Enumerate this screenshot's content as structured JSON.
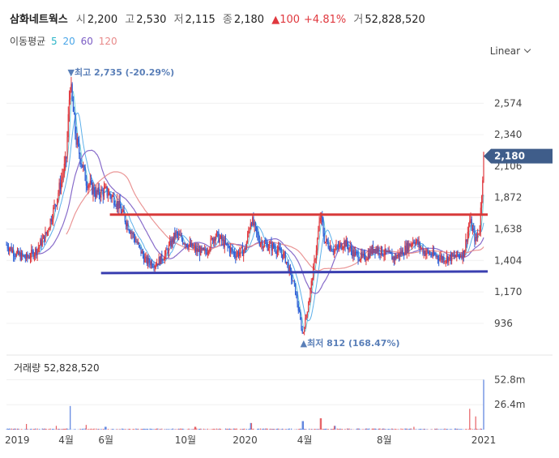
{
  "header": {
    "stock_name": "삼화네트웍스",
    "open_label": "시",
    "open": "2,200",
    "high_label": "고",
    "high": "2,530",
    "low_label": "저",
    "low": "2,115",
    "close_label": "종",
    "close": "2,180",
    "change": "▲100",
    "change_pct": "+4.81%",
    "volume_label": "거",
    "volume": "52,828,520"
  },
  "ma_legend": {
    "label": "이동평균",
    "items": [
      {
        "period": "5",
        "color": "#2bb5c8"
      },
      {
        "period": "20",
        "color": "#4aa6e8"
      },
      {
        "period": "60",
        "color": "#7b5cc4"
      },
      {
        "period": "120",
        "color": "#e88a8a"
      }
    ]
  },
  "scale_toggle": "Linear",
  "volume_header": {
    "label": "거래량",
    "value": "52,828,520"
  },
  "colors": {
    "up": "#e0383e",
    "down": "#2d5fd6",
    "resistance": "#d83a3a",
    "support": "#3a3fb0",
    "price_tag": "#3f5d8a"
  },
  "chart_data": {
    "type": "candlestick",
    "y_ticks": [
      "2,574",
      "2,340",
      "2,106",
      "1,872",
      "1,638",
      "1,404",
      "1,170",
      "936"
    ],
    "y_tick_values": [
      2574,
      2340,
      2106,
      1872,
      1638,
      1404,
      1170,
      936
    ],
    "ylim": [
      736,
      2890
    ],
    "x_ticks": [
      "2019",
      "4월",
      "6월",
      "10월",
      "2020",
      "4월",
      "8월",
      "2021"
    ],
    "x_tick_months": [
      0,
      3,
      5,
      9,
      12,
      15,
      19,
      24
    ],
    "x_range_months": [
      0,
      24
    ],
    "current_price": "2,180",
    "current_price_value": 2180,
    "max_annotation": {
      "text": "▼최고 2,735 (-20.29%)",
      "value": 2735,
      "month": 3.2
    },
    "min_annotation": {
      "text": "▲최저 812 (168.47%)",
      "value": 812,
      "month": 14.9
    },
    "resistance_line": {
      "value": 1745,
      "from_month": 5.2,
      "to_month": 24
    },
    "support_line": {
      "value": 1310,
      "from_month": 5.0,
      "to_month": 24
    },
    "price_path": [
      [
        0,
        1520
      ],
      [
        0.5,
        1450
      ],
      [
        1,
        1420
      ],
      [
        1.5,
        1480
      ],
      [
        2,
        1600
      ],
      [
        2.5,
        1850
      ],
      [
        3,
        2150
      ],
      [
        3.2,
        2735
      ],
      [
        3.5,
        2300
      ],
      [
        4,
        2000
      ],
      [
        4.5,
        1900
      ],
      [
        5,
        1920
      ],
      [
        5.5,
        1850
      ],
      [
        6,
        1700
      ],
      [
        6.5,
        1550
      ],
      [
        7,
        1400
      ],
      [
        7.5,
        1380
      ],
      [
        8,
        1450
      ],
      [
        8.5,
        1600
      ],
      [
        9,
        1540
      ],
      [
        9.5,
        1480
      ],
      [
        10,
        1460
      ],
      [
        10.5,
        1600
      ],
      [
        11,
        1520
      ],
      [
        11.5,
        1450
      ],
      [
        12,
        1480
      ],
      [
        12.3,
        1720
      ],
      [
        12.7,
        1550
      ],
      [
        13,
        1520
      ],
      [
        13.5,
        1500
      ],
      [
        14,
        1430
      ],
      [
        14.5,
        1200
      ],
      [
        14.9,
        850
      ],
      [
        15.2,
        1100
      ],
      [
        15.5,
        1400
      ],
      [
        15.8,
        1750
      ],
      [
        16,
        1550
      ],
      [
        16.5,
        1480
      ],
      [
        17,
        1540
      ],
      [
        17.5,
        1450
      ],
      [
        18,
        1420
      ],
      [
        18.5,
        1500
      ],
      [
        19,
        1460
      ],
      [
        19.5,
        1420
      ],
      [
        20,
        1480
      ],
      [
        20.5,
        1560
      ],
      [
        21,
        1470
      ],
      [
        21.5,
        1440
      ],
      [
        22,
        1420
      ],
      [
        22.5,
        1430
      ],
      [
        23,
        1460
      ],
      [
        23.3,
        1700
      ],
      [
        23.6,
        1550
      ],
      [
        23.8,
        1650
      ],
      [
        24,
        2180
      ]
    ],
    "volume_ticks": [
      "52.8m",
      "26.4m"
    ],
    "volume_tick_values": [
      52.8,
      26.4
    ],
    "volume_max": 60,
    "volume_spikes": [
      [
        1.0,
        6
      ],
      [
        2.5,
        4
      ],
      [
        3.2,
        25
      ],
      [
        4.0,
        5
      ],
      [
        5.0,
        3
      ],
      [
        9.5,
        3
      ],
      [
        12.3,
        7
      ],
      [
        14.9,
        9
      ],
      [
        15.8,
        12
      ],
      [
        16.5,
        4
      ],
      [
        20.5,
        3
      ],
      [
        23.3,
        22
      ],
      [
        23.6,
        14
      ],
      [
        24,
        52.8
      ]
    ]
  }
}
